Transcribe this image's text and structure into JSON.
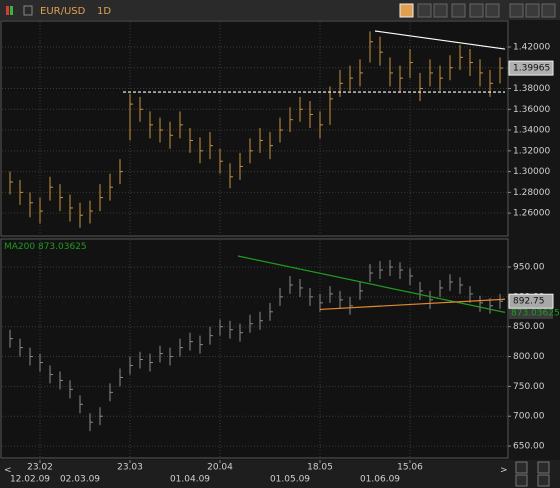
{
  "chart_data": [
    {
      "type": "ohlc",
      "title": "EUR/USD",
      "subtitle": "1D",
      "color": "#c8913c",
      "high": [
        1.3,
        1.292,
        1.28,
        1.275,
        1.295,
        1.288,
        1.278,
        1.27,
        1.272,
        1.288,
        1.298,
        1.312,
        1.375,
        1.372,
        1.358,
        1.352,
        1.348,
        1.358,
        1.342,
        1.333,
        1.338,
        1.322,
        1.308,
        1.318,
        1.332,
        1.342,
        1.338,
        1.352,
        1.362,
        1.372,
        1.368,
        1.358,
        1.382,
        1.398,
        1.402,
        1.408,
        1.435,
        1.43,
        1.41,
        1.402,
        1.418,
        1.395,
        1.408,
        1.402,
        1.412,
        1.422,
        1.418,
        1.408,
        1.398,
        1.41
      ],
      "low": [
        1.278,
        1.268,
        1.256,
        1.25,
        1.272,
        1.262,
        1.252,
        1.246,
        1.25,
        1.262,
        1.272,
        1.288,
        1.33,
        1.348,
        1.332,
        1.328,
        1.322,
        1.332,
        1.318,
        1.308,
        1.312,
        1.298,
        1.284,
        1.292,
        1.308,
        1.318,
        1.312,
        1.328,
        1.338,
        1.348,
        1.342,
        1.332,
        1.345,
        1.372,
        1.378,
        1.382,
        1.405,
        1.402,
        1.382,
        1.376,
        1.39,
        1.368,
        1.382,
        1.378,
        1.388,
        1.398,
        1.392,
        1.382,
        1.372,
        1.385
      ],
      "close": [
        1.29,
        1.28,
        1.27,
        1.262,
        1.285,
        1.275,
        1.265,
        1.258,
        1.262,
        1.275,
        1.285,
        1.3,
        1.365,
        1.36,
        1.345,
        1.34,
        1.335,
        1.345,
        1.33,
        1.32,
        1.325,
        1.31,
        1.295,
        1.305,
        1.32,
        1.33,
        1.325,
        1.34,
        1.35,
        1.36,
        1.355,
        1.345,
        1.37,
        1.385,
        1.39,
        1.395,
        1.425,
        1.415,
        1.395,
        1.39,
        1.405,
        1.38,
        1.395,
        1.39,
        1.4,
        1.41,
        1.405,
        1.395,
        1.385,
        1.39965
      ],
      "last_value": 1.39965,
      "last_color": "#b0b0b0",
      "ylim": [
        1.238,
        1.445
      ],
      "yticks": [
        {
          "value": 1.26,
          "label": "1.26000"
        },
        {
          "value": 1.28,
          "label": "1.28000"
        },
        {
          "value": 1.3,
          "label": "1.30000"
        },
        {
          "value": 1.32,
          "label": "1.32000"
        },
        {
          "value": 1.34,
          "label": "1.34000"
        },
        {
          "value": 1.36,
          "label": "1.36000"
        },
        {
          "value": 1.38,
          "label": "1.38000"
        },
        {
          "value": 1.4,
          "label": "1.40000"
        },
        {
          "value": 1.42,
          "label": "1.42000"
        }
      ],
      "grid": true,
      "trendlines": [
        {
          "color": "#ffffff",
          "dash": false,
          "from": [
            36.5,
            1.4354
          ],
          "to": [
            49.5,
            1.418
          ]
        },
        {
          "color": "#ffffff",
          "dash": true,
          "from": [
            11.3,
            1.3766
          ],
          "to": [
            49.5,
            1.3766
          ]
        }
      ]
    },
    {
      "type": "ohlc",
      "color": "#8a8a8a",
      "high": [
        845,
        830,
        815,
        805,
        785,
        775,
        760,
        735,
        705,
        715,
        755,
        780,
        800,
        808,
        805,
        818,
        815,
        830,
        840,
        835,
        850,
        862,
        860,
        855,
        870,
        875,
        890,
        915,
        935,
        930,
        915,
        905,
        918,
        910,
        900,
        925,
        955,
        960,
        962,
        958,
        948,
        925,
        910,
        928,
        938,
        933,
        918,
        902,
        898,
        905
      ],
      "low": [
        815,
        800,
        785,
        775,
        755,
        745,
        730,
        705,
        675,
        685,
        725,
        750,
        770,
        780,
        775,
        790,
        785,
        800,
        810,
        805,
        820,
        835,
        830,
        825,
        840,
        845,
        860,
        885,
        905,
        900,
        885,
        875,
        890,
        880,
        870,
        895,
        925,
        930,
        935,
        930,
        920,
        895,
        880,
        900,
        910,
        905,
        890,
        875,
        872,
        880
      ],
      "close": [
        830,
        815,
        800,
        790,
        770,
        760,
        745,
        720,
        690,
        700,
        740,
        765,
        785,
        795,
        790,
        805,
        800,
        815,
        825,
        820,
        835,
        850,
        845,
        840,
        855,
        860,
        875,
        900,
        920,
        915,
        900,
        890,
        905,
        895,
        885,
        910,
        940,
        945,
        950,
        945,
        935,
        910,
        895,
        915,
        925,
        920,
        905,
        890,
        885,
        892.75
      ],
      "last_value": 892.75,
      "last_color": "#a8a8a8",
      "indicator": {
        "name": "MA200",
        "value": 873.03625,
        "color": "#1f9c1f"
      },
      "ylim": [
        630,
        997
      ],
      "yticks": [
        {
          "value": 650,
          "label": "650.00"
        },
        {
          "value": 700,
          "label": "700.00"
        },
        {
          "value": 750,
          "label": "750.00"
        },
        {
          "value": 800,
          "label": "800.00"
        },
        {
          "value": 850,
          "label": "850.00"
        },
        {
          "value": 900,
          "label": "900.00"
        },
        {
          "value": 950,
          "label": "950.00"
        }
      ],
      "grid": true,
      "trendlines": [
        {
          "color": "#1f9c1f",
          "dash": false,
          "from": [
            22.8,
            968.5
          ],
          "to": [
            49.5,
            874
          ]
        },
        {
          "color": "#e08a30",
          "dash": false,
          "from": [
            31,
            879
          ],
          "to": [
            49.5,
            896
          ]
        }
      ],
      "categories": [
        null,
        null,
        null,
        "23.02",
        null,
        null,
        null,
        null,
        null,
        null,
        null,
        null,
        "23.03",
        null,
        null,
        null,
        null,
        null,
        null,
        null,
        null,
        "20.04",
        null,
        null,
        null,
        null,
        null,
        null,
        null,
        null,
        null,
        "18.05",
        null,
        null,
        null,
        null,
        null,
        null,
        null,
        null,
        "15.06",
        null,
        null,
        null,
        null,
        null,
        null,
        null,
        null,
        null
      ],
      "category_dates": [
        null,
        null,
        "12.02.09",
        null,
        null,
        null,
        null,
        "02.03.09",
        null,
        null,
        null,
        null,
        null,
        null,
        null,
        null,
        null,
        null,
        "01.04.09",
        null,
        null,
        null,
        null,
        null,
        null,
        null,
        null,
        null,
        "01.05.09",
        null,
        null,
        null,
        null,
        null,
        null,
        null,
        null,
        "01.06.09",
        null,
        null,
        null,
        null,
        null,
        null,
        null,
        null,
        null,
        null,
        null,
        null
      ]
    }
  ]
}
